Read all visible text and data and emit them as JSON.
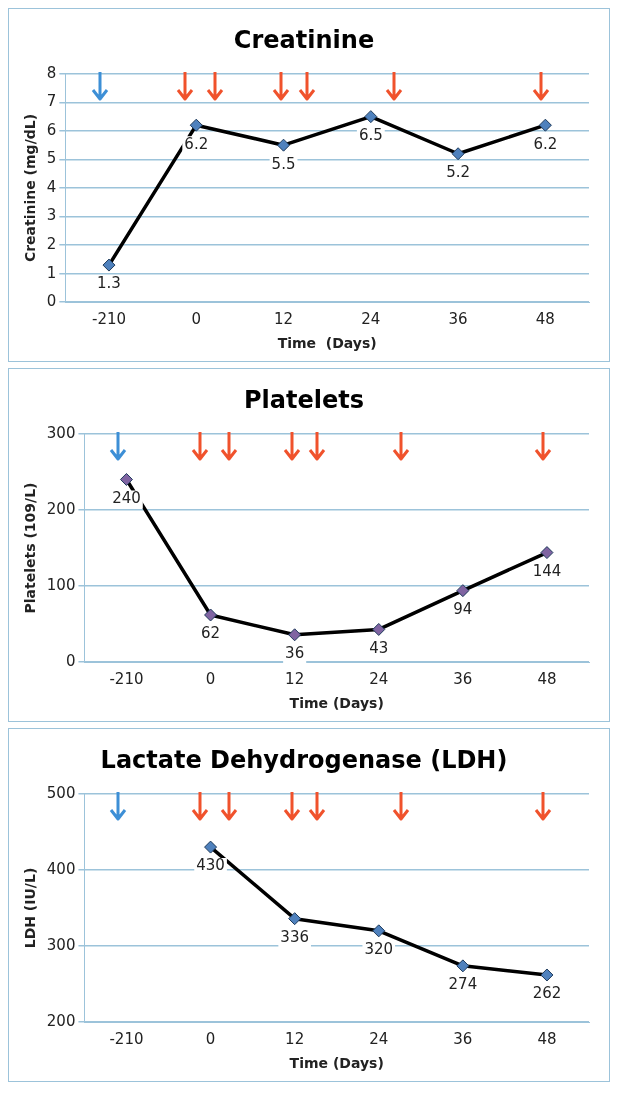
{
  "chart_data": [
    {
      "type": "line",
      "title": "Creatinine",
      "xlabel": "Time  (Days)",
      "ylabel": "Creatinine (mg/dL)",
      "categories": [
        "-210",
        "0",
        "12",
        "24",
        "36",
        "48"
      ],
      "series": [
        {
          "color": "#000000",
          "colors": [
            "#4f81bd",
            "#4f81bd",
            "#4f81bd",
            "#4f81bd",
            "#4f81bd",
            "#4f81bd"
          ],
          "values": [
            1.3,
            6.2,
            5.5,
            6.5,
            5.2,
            6.2
          ]
        }
      ],
      "ylim": [
        0,
        8
      ],
      "yticks": [
        0,
        1,
        2,
        3,
        4,
        5,
        6,
        7,
        8
      ],
      "grid": "y",
      "marker": "diamond",
      "data_labels": true,
      "legend": false
    },
    {
      "type": "line",
      "title": "Platelets",
      "xlabel": "Time (Days)",
      "ylabel": "Platelets (109/L)",
      "categories": [
        "-210",
        "0",
        "12",
        "24",
        "36",
        "48"
      ],
      "series": [
        {
          "color": "#000000",
          "colors": [
            "#8064a2",
            "#8064a2",
            "#8064a2",
            "#8064a2",
            "#8064a2",
            "#8064a2"
          ],
          "values": [
            240,
            62,
            36,
            43,
            94,
            144
          ]
        }
      ],
      "ylim": [
        0,
        300
      ],
      "yticks": [
        0,
        100,
        200,
        300
      ],
      "grid": "y",
      "marker": "diamond",
      "data_labels": true,
      "legend": false
    },
    {
      "type": "line",
      "title": "Lactate Dehydrogenase (LDH)",
      "xlabel": "Time (Days)",
      "ylabel": "LDH (IU/L)",
      "categories": [
        "-210",
        "0",
        "12",
        "24",
        "36",
        "48"
      ],
      "series": [
        {
          "color": "#000000",
          "colors": [
            null,
            "#4f81bd",
            "#4f81bd",
            "#4f81bd",
            "#4f81bd",
            "#4f81bd"
          ],
          "values": [
            null,
            430,
            336,
            320,
            274,
            262
          ]
        }
      ],
      "ylim": [
        200,
        500
      ],
      "yticks": [
        200,
        300,
        400,
        500
      ],
      "grid": "y",
      "marker": "diamond",
      "data_labels": true,
      "legend": false
    }
  ]
}
